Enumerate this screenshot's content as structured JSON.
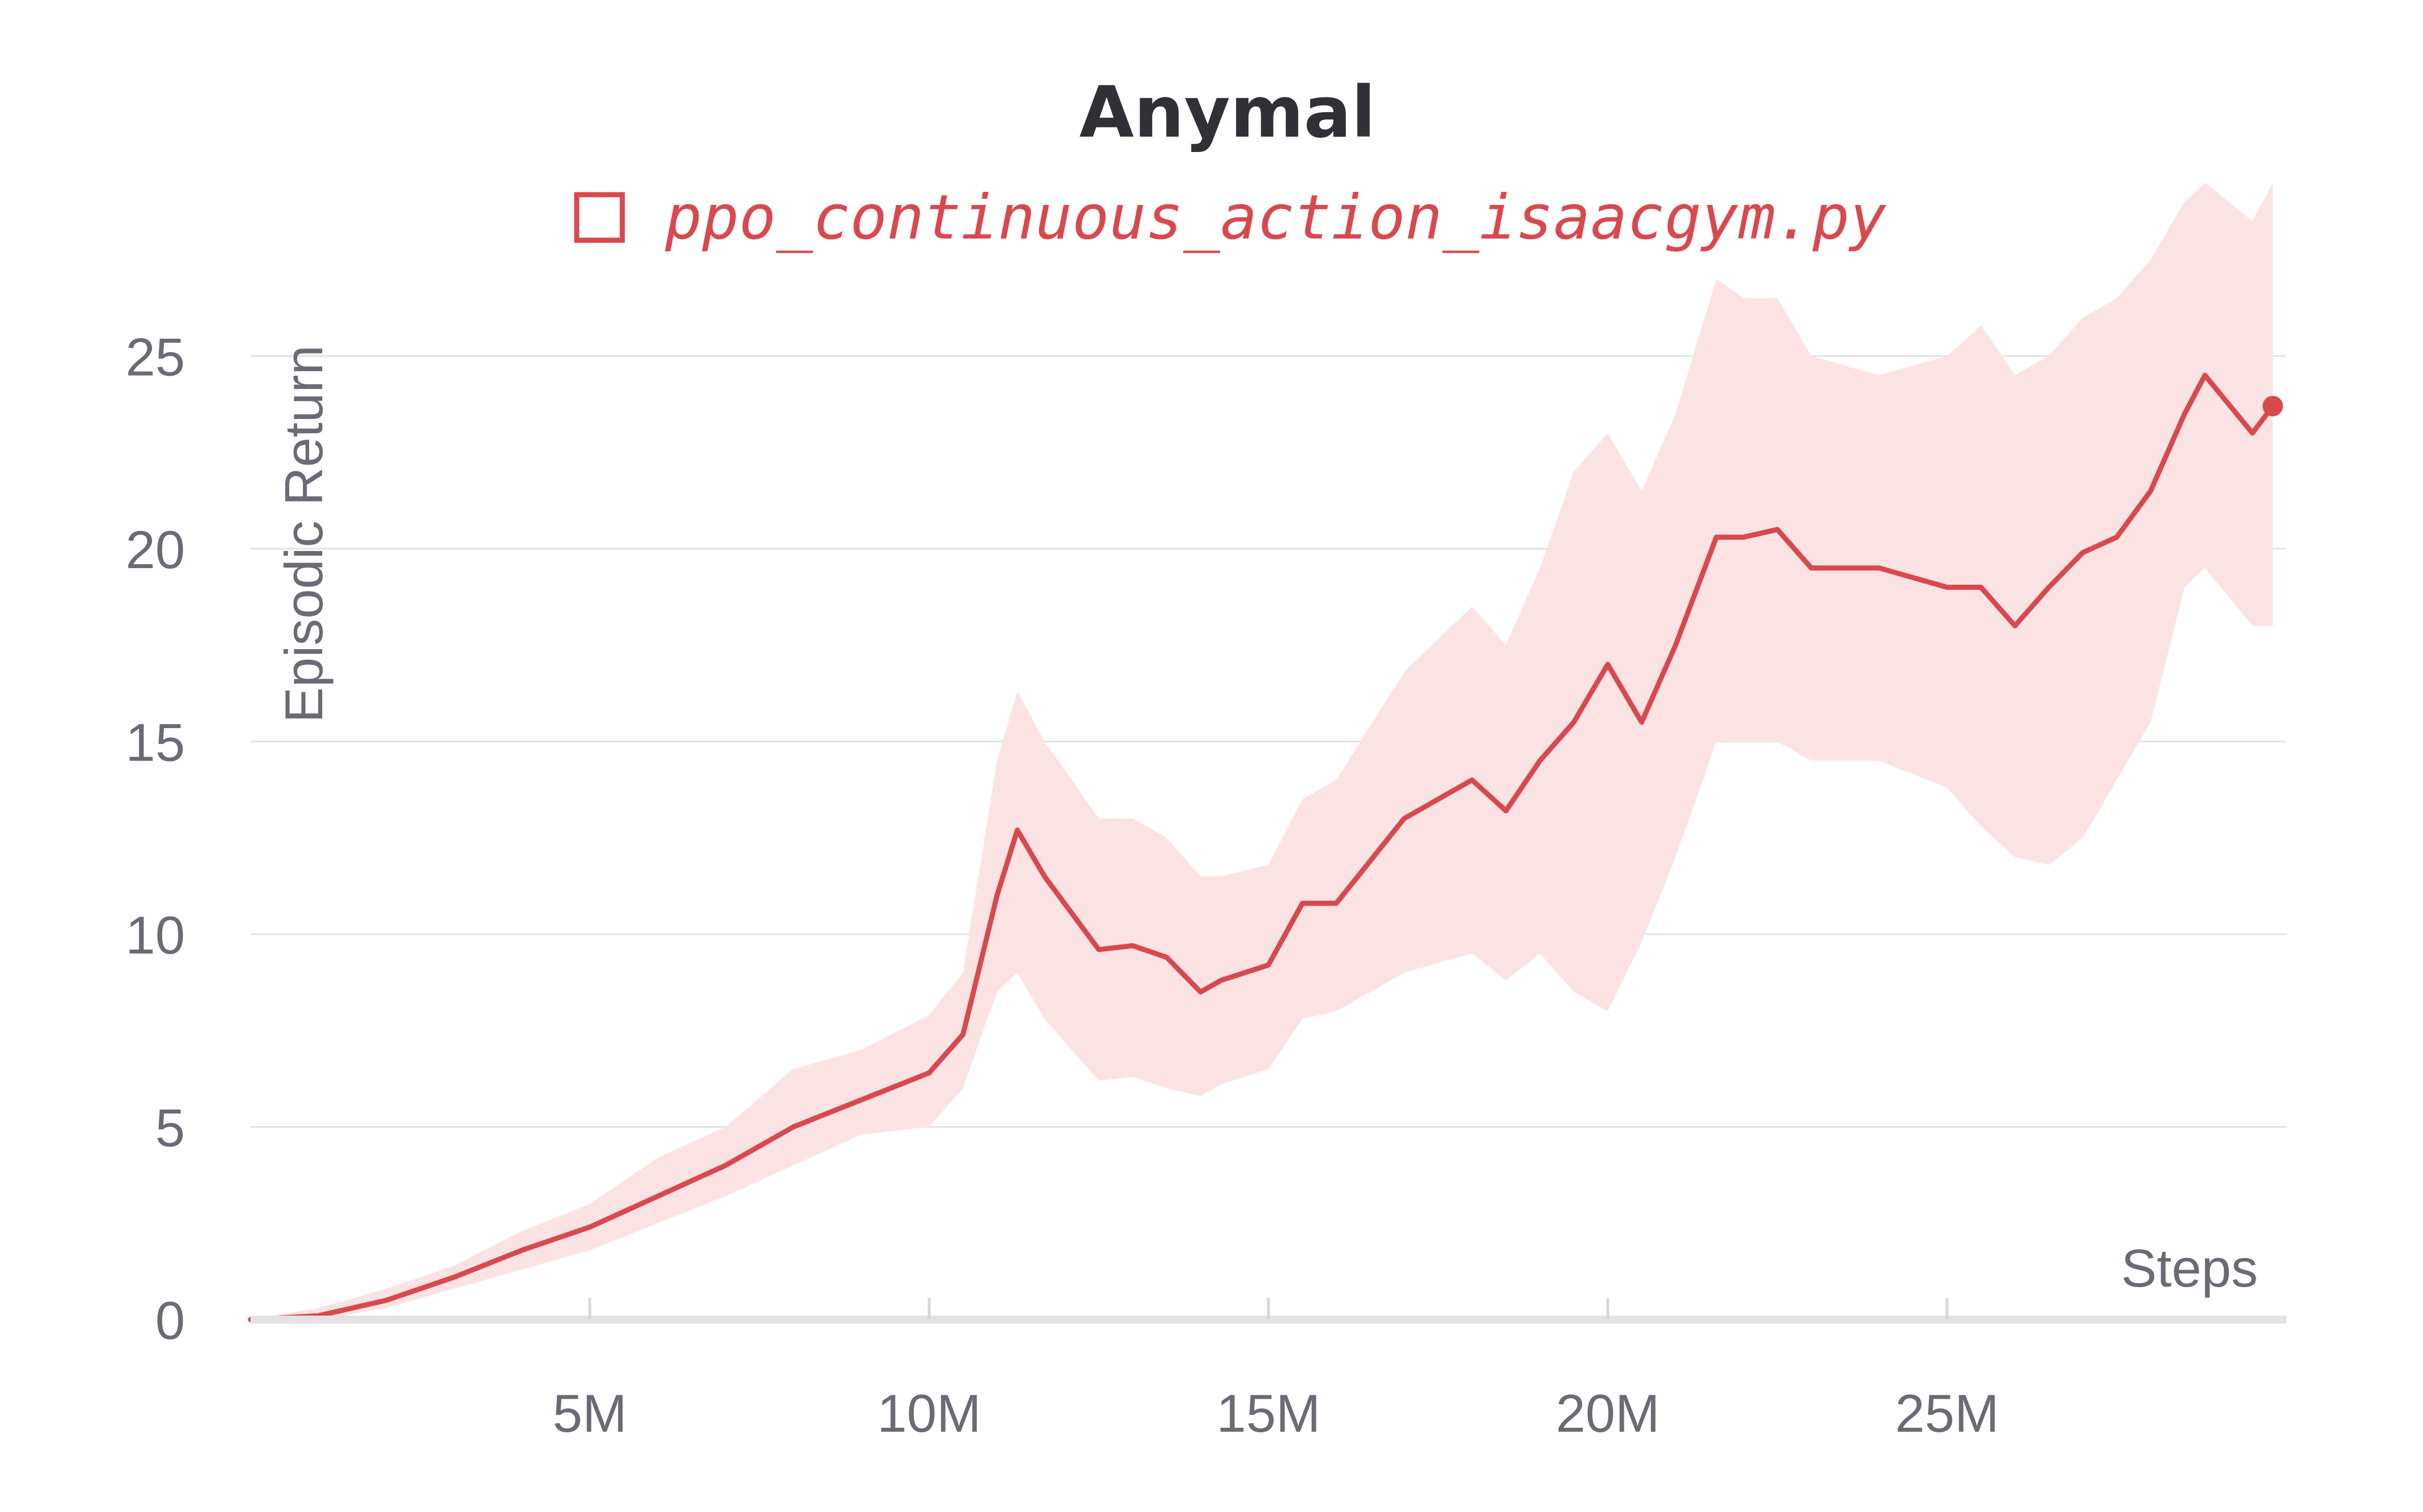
{
  "chart_data": {
    "type": "line",
    "title": "Anymal",
    "xlabel": "Steps",
    "ylabel": "Episodic Return",
    "xlim": [
      0,
      30000000
    ],
    "ylim": [
      0,
      27
    ],
    "grid": true,
    "legend_position": "top-center",
    "x_ticks": [
      {
        "value": 5000000,
        "label": "5M"
      },
      {
        "value": 10000000,
        "label": "10M"
      },
      {
        "value": 15000000,
        "label": "15M"
      },
      {
        "value": 20000000,
        "label": "20M"
      },
      {
        "value": 25000000,
        "label": "25M"
      }
    ],
    "y_ticks": [
      {
        "value": 0,
        "label": "0"
      },
      {
        "value": 5,
        "label": "5"
      },
      {
        "value": 10,
        "label": "10"
      },
      {
        "value": 15,
        "label": "15"
      },
      {
        "value": 20,
        "label": "20"
      },
      {
        "value": 25,
        "label": "25"
      }
    ],
    "series": [
      {
        "name": "ppo_continuous_action_isaacgym.py",
        "color": "#d8494e",
        "band_color": "#fbe3e4",
        "x": [
          0,
          1000000,
          2000000,
          3000000,
          4000000,
          5000000,
          6000000,
          7000000,
          8000000,
          9000000,
          10000000,
          10500000,
          11000000,
          11300000,
          11700000,
          12500000,
          13000000,
          13500000,
          14000000,
          14300000,
          15000000,
          15500000,
          16000000,
          17000000,
          18000000,
          18500000,
          19000000,
          19500000,
          20000000,
          20500000,
          21000000,
          21600000,
          22000000,
          22500000,
          23000000,
          24000000,
          25000000,
          25500000,
          26000000,
          26500000,
          27000000,
          27500000,
          28000000,
          28500000,
          28800000,
          29500000,
          29800000
        ],
        "values": [
          0,
          0.1,
          0.5,
          1.1,
          1.8,
          2.4,
          3.2,
          4.0,
          5.0,
          5.7,
          6.4,
          7.4,
          11.0,
          12.7,
          11.5,
          9.6,
          9.7,
          9.4,
          8.5,
          8.8,
          9.2,
          10.8,
          10.8,
          13.0,
          14.0,
          13.2,
          14.5,
          15.5,
          17.0,
          15.5,
          17.5,
          20.3,
          20.3,
          20.5,
          19.5,
          19.5,
          19.0,
          19.0,
          18.0,
          19.0,
          19.9,
          20.3,
          21.5,
          23.5,
          24.5,
          23.0,
          23.7
        ],
        "lower": [
          0,
          0,
          0.3,
          0.8,
          1.3,
          1.8,
          2.5,
          3.2,
          4.0,
          4.8,
          5.0,
          6.0,
          8.5,
          9.0,
          7.8,
          6.2,
          6.3,
          6.0,
          5.8,
          6.1,
          6.5,
          7.8,
          8.0,
          9.0,
          9.5,
          8.8,
          9.5,
          8.5,
          8.0,
          9.8,
          12.0,
          15.0,
          15.0,
          15.0,
          14.5,
          14.5,
          13.8,
          12.8,
          12.0,
          11.8,
          12.5,
          14.0,
          15.5,
          19.0,
          19.5,
          18.0,
          18.0
        ],
        "upper": [
          0,
          0.3,
          0.8,
          1.4,
          2.3,
          3.0,
          4.2,
          5.0,
          6.5,
          7.0,
          7.9,
          9.0,
          14.5,
          16.3,
          15.0,
          13.0,
          13.0,
          12.5,
          11.5,
          11.5,
          11.8,
          13.5,
          14.0,
          16.8,
          18.5,
          17.5,
          19.5,
          22.0,
          23.0,
          21.5,
          23.5,
          27.0,
          26.5,
          26.5,
          25.0,
          24.5,
          25.0,
          25.8,
          24.5,
          25.0,
          26.0,
          26.5,
          27.5,
          29.0,
          29.5,
          28.5,
          29.5
        ]
      }
    ]
  }
}
